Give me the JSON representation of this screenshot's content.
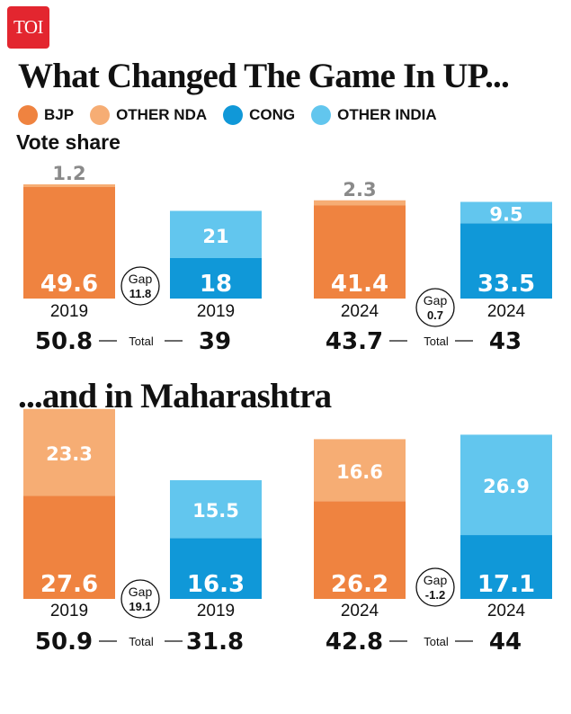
{
  "logo": {
    "text": "TOI"
  },
  "title_up": "What Changed The Game In UP...",
  "title_mh": "...and in Maharashtra",
  "subtitle": "Vote share",
  "legend": [
    {
      "label": "BJP",
      "color": "#ef8340"
    },
    {
      "label": "OTHER NDA",
      "color": "#f6ad74"
    },
    {
      "label": "CONG",
      "color": "#1098d8"
    },
    {
      "label": "OTHER INDIA",
      "color": "#62c6ee"
    }
  ],
  "total_word": "Total",
  "gap_word": "Gap",
  "chart_data": [
    {
      "type": "bar",
      "region": "UP",
      "year": "2019",
      "gap": "11.8",
      "nda": {
        "values": [
          49.6,
          1.2
        ],
        "total": "50.8",
        "labels": [
          "49.6",
          "1.2"
        ]
      },
      "india": {
        "values": [
          18,
          21
        ],
        "total": "39",
        "labels": [
          "18",
          "21"
        ]
      }
    },
    {
      "type": "bar",
      "region": "UP",
      "year": "2024",
      "gap": "0.7",
      "nda": {
        "values": [
          41.4,
          2.3
        ],
        "total": "43.7",
        "labels": [
          "41.4",
          "2.3"
        ]
      },
      "india": {
        "values": [
          33.5,
          9.5
        ],
        "total": "43",
        "labels": [
          "33.5",
          "9.5"
        ]
      }
    },
    {
      "type": "bar",
      "region": "Maharashtra",
      "year": "2019",
      "gap": "19.1",
      "nda": {
        "values": [
          27.6,
          23.3
        ],
        "total": "50.9",
        "labels": [
          "27.6",
          "23.3"
        ]
      },
      "india": {
        "values": [
          16.3,
          15.5
        ],
        "total": "31.8",
        "labels": [
          "16.3",
          "15.5"
        ]
      }
    },
    {
      "type": "bar",
      "region": "Maharashtra",
      "year": "2024",
      "gap": "-1.2",
      "nda": {
        "values": [
          26.2,
          16.6
        ],
        "total": "42.8",
        "labels": [
          "26.2",
          "16.6"
        ]
      },
      "india": {
        "values": [
          17.1,
          26.9
        ],
        "total": "44",
        "labels": [
          "17.1",
          "26.9"
        ]
      }
    }
  ]
}
